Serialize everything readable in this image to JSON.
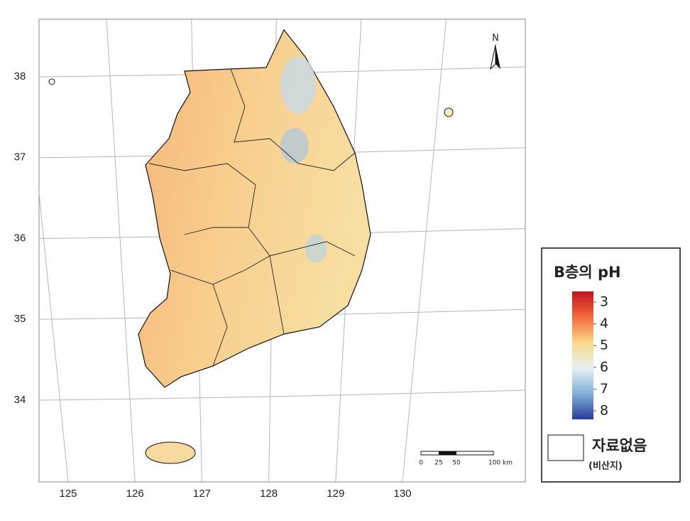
{
  "map": {
    "latitude_labels": [
      38,
      37,
      36,
      35,
      34
    ],
    "longitude_labels": [
      125,
      126,
      127,
      128,
      129,
      130
    ],
    "north_label": "N",
    "scale_bar_labels": [
      "0",
      "25",
      "50",
      "100 km"
    ]
  },
  "legend": {
    "title": "B층의 pH",
    "ticks": [
      3,
      4,
      5,
      6,
      7,
      8
    ],
    "no_data_label": "자료없음",
    "no_data_note": "(비산지)"
  }
}
